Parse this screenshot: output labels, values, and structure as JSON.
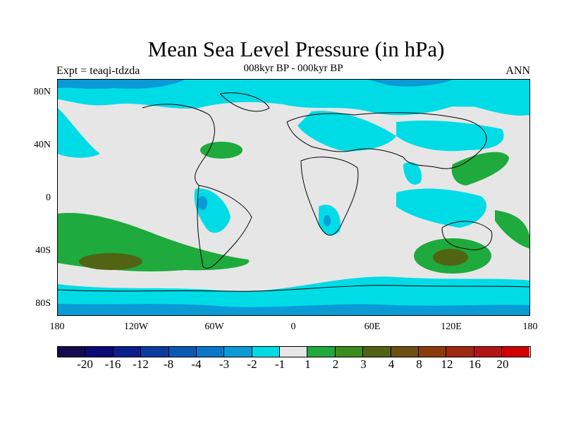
{
  "title": "Mean Sea Level Pressure (in hPa)",
  "subtitle": "008kyr BP - 000kyr BP",
  "experiment": "Expt = teaqi-tdzda",
  "period": "ANN",
  "lat_labels": [
    "80N",
    "40N",
    "0",
    "40S",
    "80S"
  ],
  "lon_labels": [
    "180",
    "120W",
    "60W",
    "0",
    "60E",
    "120E",
    "180"
  ],
  "colorbar": {
    "colors": [
      "#140a50",
      "#0a0a78",
      "#0a1e8c",
      "#0a3ca0",
      "#0a5ab4",
      "#0a78c8",
      "#0a9ad6",
      "#00dce6",
      "#e6e6e6",
      "#1eaa3c",
      "#3c8c1e",
      "#506414",
      "#6e5014",
      "#8c3c0a",
      "#a02810",
      "#b41414",
      "#d20000"
    ],
    "labels": [
      "-20",
      "-16",
      "-12",
      "-8",
      "-4",
      "-3",
      "-2",
      "-1",
      "1",
      "2",
      "3",
      "4",
      "8",
      "12",
      "16",
      "20"
    ]
  },
  "colors": {
    "ocean_background": "#e6e6e6",
    "neg1": "#00dce6",
    "neg2": "#0a9ad6",
    "neg3": "#0a78c8",
    "pos2": "#1eaa3c",
    "pos3": "#3c8c1e",
    "pos4": "#506414"
  }
}
